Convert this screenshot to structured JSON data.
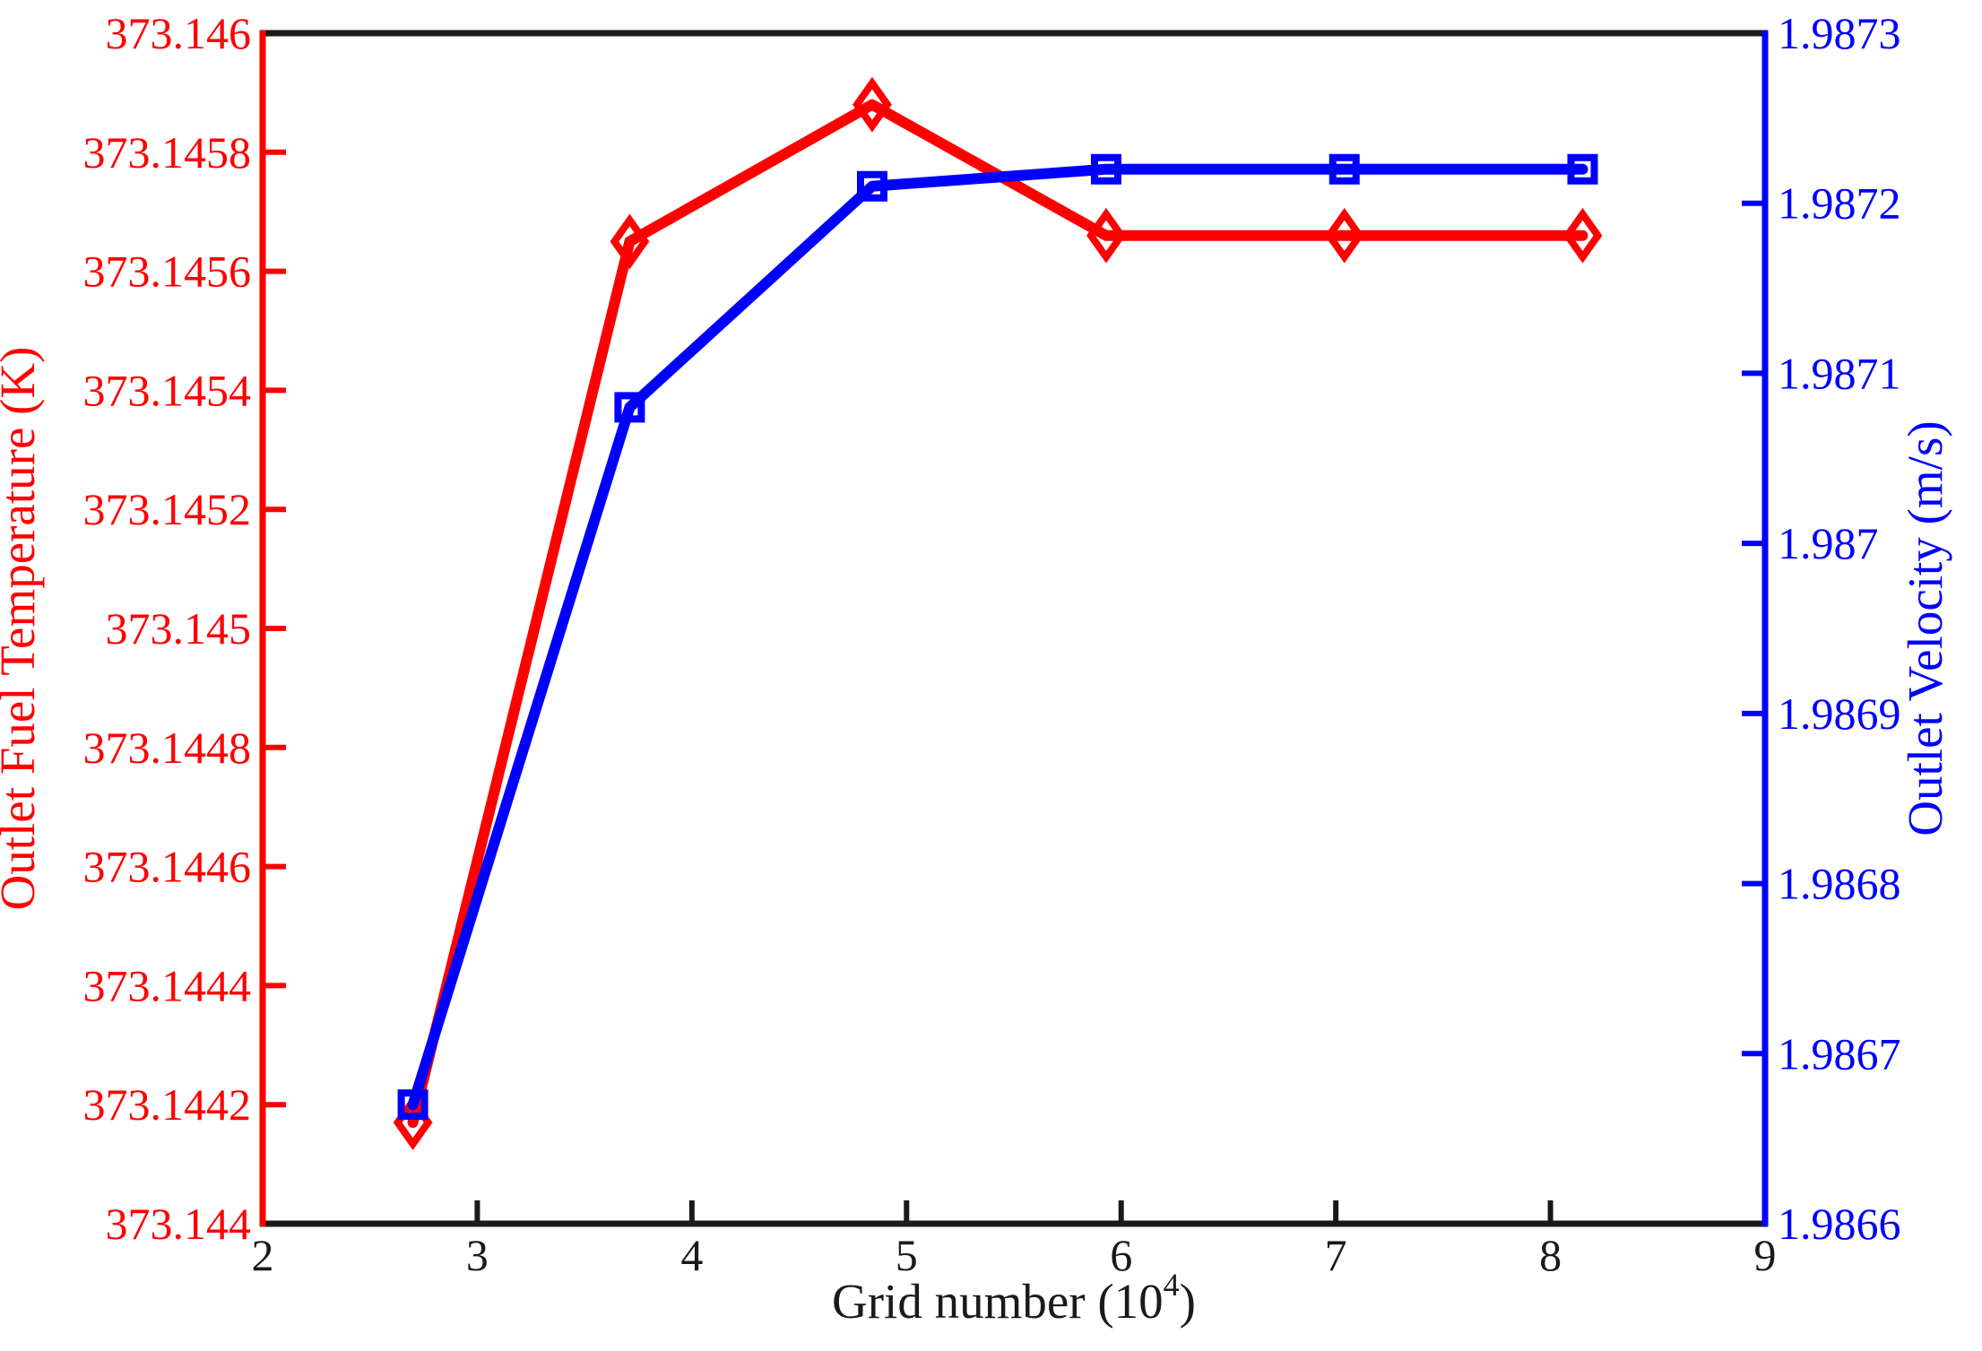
{
  "figure": {
    "background": "#ffffff"
  },
  "chart_data": {
    "type": "line",
    "title": "",
    "xlabel": "Grid number (10⁴)",
    "xlabel_parts": {
      "base": "Grid number (10",
      "superscript": "4",
      "close": ")"
    },
    "x_axis": {
      "lim": [
        2,
        9
      ],
      "ticks": [
        2,
        3,
        4,
        5,
        6,
        7,
        8,
        9
      ],
      "tick_labels": [
        "2",
        "3",
        "4",
        "5",
        "6",
        "7",
        "8",
        "9"
      ],
      "color": "#1a1a1a"
    },
    "left_axis": {
      "label": "Outlet Fuel Temperature (K)",
      "color": "#ff0000",
      "lim": [
        373.144,
        373.146
      ],
      "ticks": [
        373.144,
        373.1442,
        373.1444,
        373.1446,
        373.1448,
        373.145,
        373.1452,
        373.1454,
        373.1456,
        373.1458,
        373.146
      ],
      "tick_labels": [
        "373.144",
        "373.1442",
        "373.1444",
        "373.1446",
        "373.1448",
        "373.145",
        "373.1452",
        "373.1454",
        "373.1456",
        "373.1458",
        "373.146"
      ]
    },
    "right_axis": {
      "label": "Outlet Velocity (m/s)",
      "color": "#0000ff",
      "lim": [
        1.9866,
        1.9873
      ],
      "ticks": [
        1.9866,
        1.9867,
        1.9868,
        1.9869,
        1.987,
        1.9871,
        1.9872,
        1.9873
      ],
      "tick_labels": [
        "1.9866",
        "1.9867",
        "1.9868",
        "1.9869",
        "1.987",
        "1.9871",
        "1.9872",
        "1.9873"
      ]
    },
    "grid": false,
    "legend": false,
    "series": [
      {
        "id": "temperature",
        "name": "Outlet Fuel Temperature",
        "axis": "left",
        "color": "#ff0000",
        "marker": "diamond",
        "x": [
          2.7,
          3.71,
          4.84,
          5.93,
          7.04,
          8.15
        ],
        "y": [
          373.14417,
          373.14565,
          373.14588,
          373.14566,
          373.14566,
          373.14566
        ]
      },
      {
        "id": "velocity",
        "name": "Outlet Velocity",
        "axis": "right",
        "color": "#0000ff",
        "marker": "square",
        "x": [
          2.7,
          3.71,
          4.84,
          5.93,
          7.04,
          8.15
        ],
        "y": [
          1.98667,
          1.98708,
          1.98721,
          1.98722,
          1.98722,
          1.98722
        ]
      }
    ]
  }
}
